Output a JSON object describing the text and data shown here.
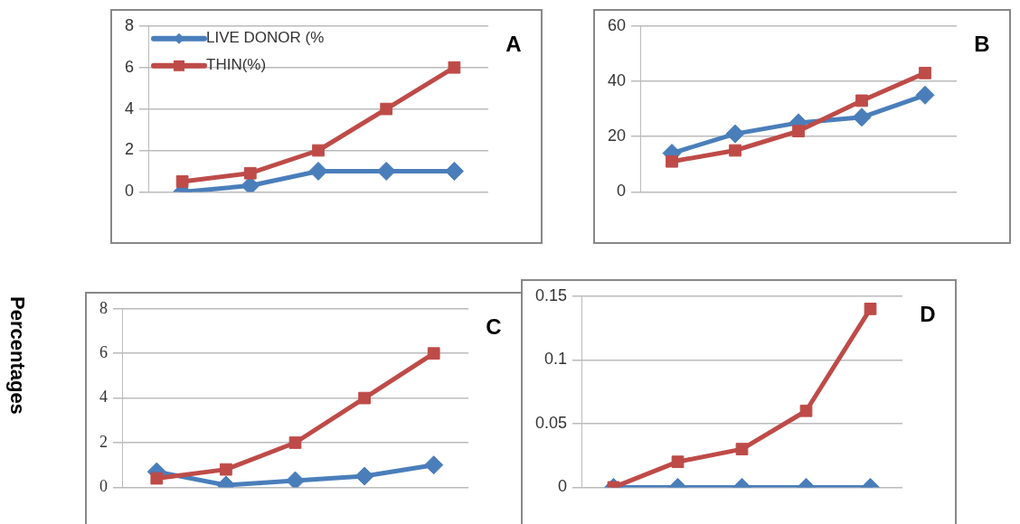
{
  "chart_data": [
    {
      "type": "line",
      "categories": [
        null,
        null,
        null,
        null,
        null
      ],
      "series": [
        {
          "name": "LIVE DONOR (%",
          "color": "#4a7ebb",
          "marker": "diamond",
          "values": [
            0,
            0.3,
            1,
            1,
            1
          ]
        },
        {
          "name": "THIN(%)",
          "color": "#be4b48",
          "marker": "square",
          "values": [
            0.5,
            0.9,
            2,
            4,
            6
          ]
        }
      ],
      "ylim": [
        0,
        8
      ],
      "yticks": [
        0,
        2,
        4,
        6,
        8
      ],
      "grid": "y",
      "legend": "top left",
      "annotations": [
        "A"
      ]
    },
    {
      "type": "line",
      "categories": [
        null,
        null,
        null,
        null,
        null
      ],
      "series": [
        {
          "color": "#4a7ebb",
          "marker": "diamond",
          "values": [
            14,
            21,
            25,
            27,
            35
          ]
        },
        {
          "color": "#be4b48",
          "marker": "square",
          "values": [
            11,
            15,
            22,
            33,
            43
          ]
        }
      ],
      "ylim": [
        0,
        60
      ],
      "yticks": [
        0,
        20,
        40,
        60
      ],
      "grid": "y",
      "annotations": [
        "B"
      ]
    },
    {
      "type": "line",
      "categories": [
        null,
        null,
        null,
        null,
        null
      ],
      "series": [
        {
          "color": "#4a7ebb",
          "marker": "diamond",
          "values": [
            0.7,
            0.1,
            0.3,
            0.5,
            1.0
          ]
        },
        {
          "color": "#be4b48",
          "marker": "square",
          "values": [
            0.4,
            0.8,
            2,
            4,
            6
          ]
        }
      ],
      "ylim": [
        0,
        8
      ],
      "yticks": [
        0,
        2,
        4,
        6,
        8
      ],
      "grid": "y",
      "ylabel": "Percentages",
      "annotations": [
        "C"
      ]
    },
    {
      "type": "line",
      "categories": [
        null,
        null,
        null,
        null,
        null
      ],
      "series": [
        {
          "color": "#4a7ebb",
          "marker": "diamond",
          "values": [
            0,
            0,
            0,
            0,
            0
          ]
        },
        {
          "color": "#be4b48",
          "marker": "square",
          "values": [
            0,
            0.02,
            0.03,
            0.06,
            0.14
          ]
        }
      ],
      "ylim": [
        0,
        0.15
      ],
      "yticks": [
        0,
        0.05,
        0.1,
        0.15
      ],
      "grid": "y",
      "annotations": [
        "D"
      ]
    }
  ]
}
